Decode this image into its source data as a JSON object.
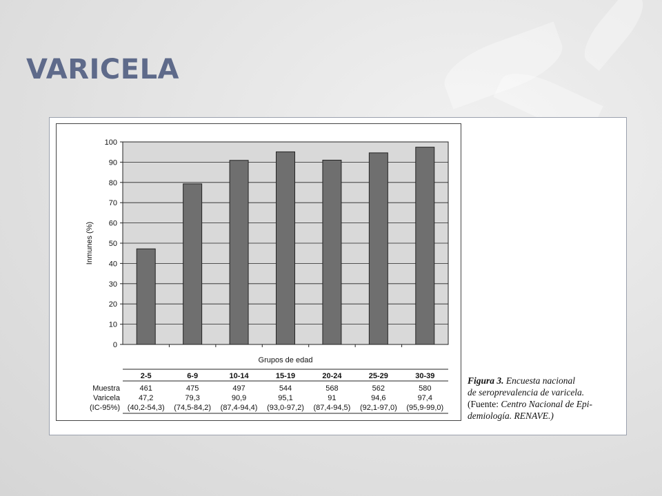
{
  "slide": {
    "title": "VARICELA"
  },
  "chart_data": {
    "type": "bar",
    "categories": [
      "2-5",
      "6-9",
      "10-14",
      "15-19",
      "20-24",
      "25-29",
      "30-39"
    ],
    "values": [
      47.2,
      79.3,
      90.9,
      95.1,
      91,
      94.6,
      97.4
    ],
    "xlabel": "Grupos de edad",
    "ylabel": "Inmunes (%)",
    "ylim": [
      0,
      100
    ],
    "yticks": [
      "0",
      "10",
      "20",
      "30",
      "40",
      "50",
      "60",
      "70",
      "80",
      "90",
      "100"
    ],
    "grid": true,
    "bar_color": "#6f6f6f",
    "plot_background": "#d9d9d9",
    "table": {
      "rows": [
        {
          "label": "Muestra",
          "values": [
            "461",
            "475",
            "497",
            "544",
            "568",
            "562",
            "580"
          ]
        },
        {
          "label": "Varicela",
          "values": [
            "47,2",
            "79,3",
            "90,9",
            "95,1",
            "91",
            "94,6",
            "97,4"
          ]
        },
        {
          "label": "(IC-95%)",
          "values": [
            "(40,2-54,3)",
            "(74,5-84,2)",
            "(87,4-94,4)",
            "(93,0-97,2)",
            "(87,4-94,5)",
            "(92,1-97,0)",
            "(95,9-99,0)"
          ]
        }
      ]
    }
  },
  "caption": {
    "figure_label": "Figura 3.",
    "line1_rest": " Encuesta nacional",
    "line2": "de seroprevalencia de varicela.",
    "line3_open": "(",
    "line3_fuente": "Fuente: ",
    "line3_rest": "Centro Nacional de Epi-",
    "line4": "demiología. RENAVE.)"
  }
}
